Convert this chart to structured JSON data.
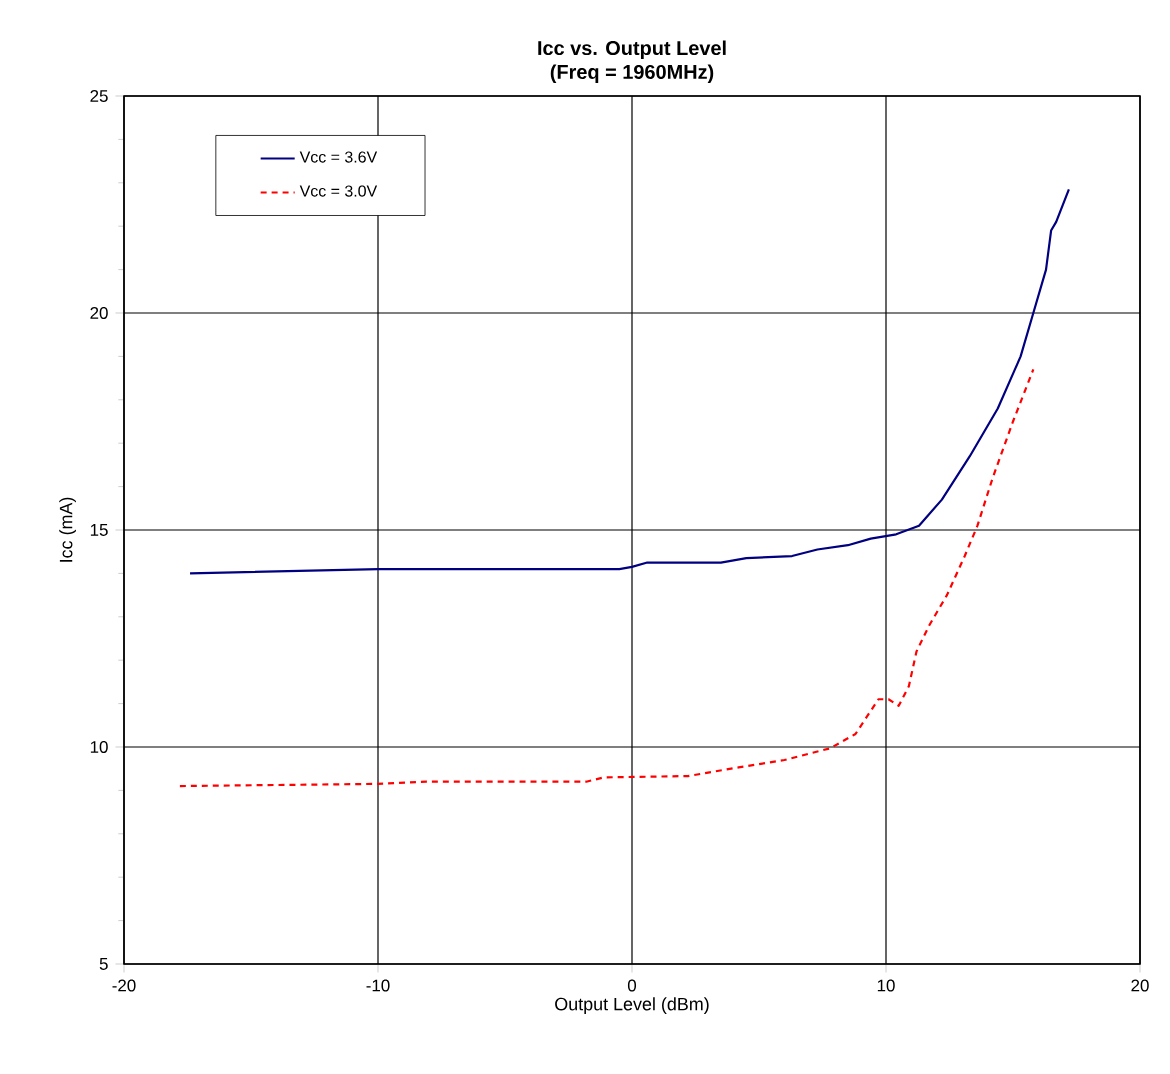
{
  "chart_data": {
    "type": "line",
    "title": "Icc vs. Output Level",
    "subtitle": "(Freq = 1960MHz)",
    "xlabel": "Output Level (dBm)",
    "ylabel": "Icc (mA)",
    "xlim": [
      -20,
      20
    ],
    "xticks": [
      -20,
      -10,
      0,
      10,
      20
    ],
    "ylim": [
      5,
      25
    ],
    "yticks": [
      5,
      10,
      15,
      20,
      25
    ],
    "grid": true,
    "legend": "top left",
    "marker": "none",
    "series": [
      {
        "name": "Vcc = 3.6V",
        "color": "#000080",
        "line_style": "solid",
        "x": [
          -17.4,
          -10,
          -0.5,
          0,
          0.6,
          3.5,
          4.5,
          6.3,
          7.3,
          8.5,
          9.4,
          10.4,
          11.3,
          12.2,
          13.3,
          14.4,
          15.3,
          15.8,
          16.3,
          16.5,
          16.7,
          17.2
        ],
        "values": [
          14.0,
          14.1,
          14.1,
          14.15,
          14.25,
          14.25,
          14.35,
          14.4,
          14.55,
          14.65,
          14.8,
          14.9,
          15.1,
          15.7,
          16.7,
          17.8,
          19.0,
          20.0,
          21.0,
          21.9,
          22.1,
          22.85
        ]
      },
      {
        "name": "Vcc = 3.0V",
        "color": "#ff0000",
        "line_style": "dashed",
        "x": [
          -17.8,
          -10,
          -8.1,
          -1.8,
          -1.1,
          2.2,
          4.2,
          6.0,
          7.8,
          8.8,
          9.7,
          10.1,
          10.5,
          10.9,
          11.2,
          11.7,
          12.4,
          13.1,
          13.6,
          14.2,
          15.0,
          15.8
        ],
        "values": [
          9.1,
          9.15,
          9.2,
          9.2,
          9.3,
          9.33,
          9.53,
          9.7,
          9.97,
          10.3,
          11.1,
          11.1,
          10.95,
          11.4,
          12.2,
          12.8,
          13.5,
          14.4,
          15.1,
          16.2,
          17.5,
          18.7
        ]
      }
    ]
  }
}
